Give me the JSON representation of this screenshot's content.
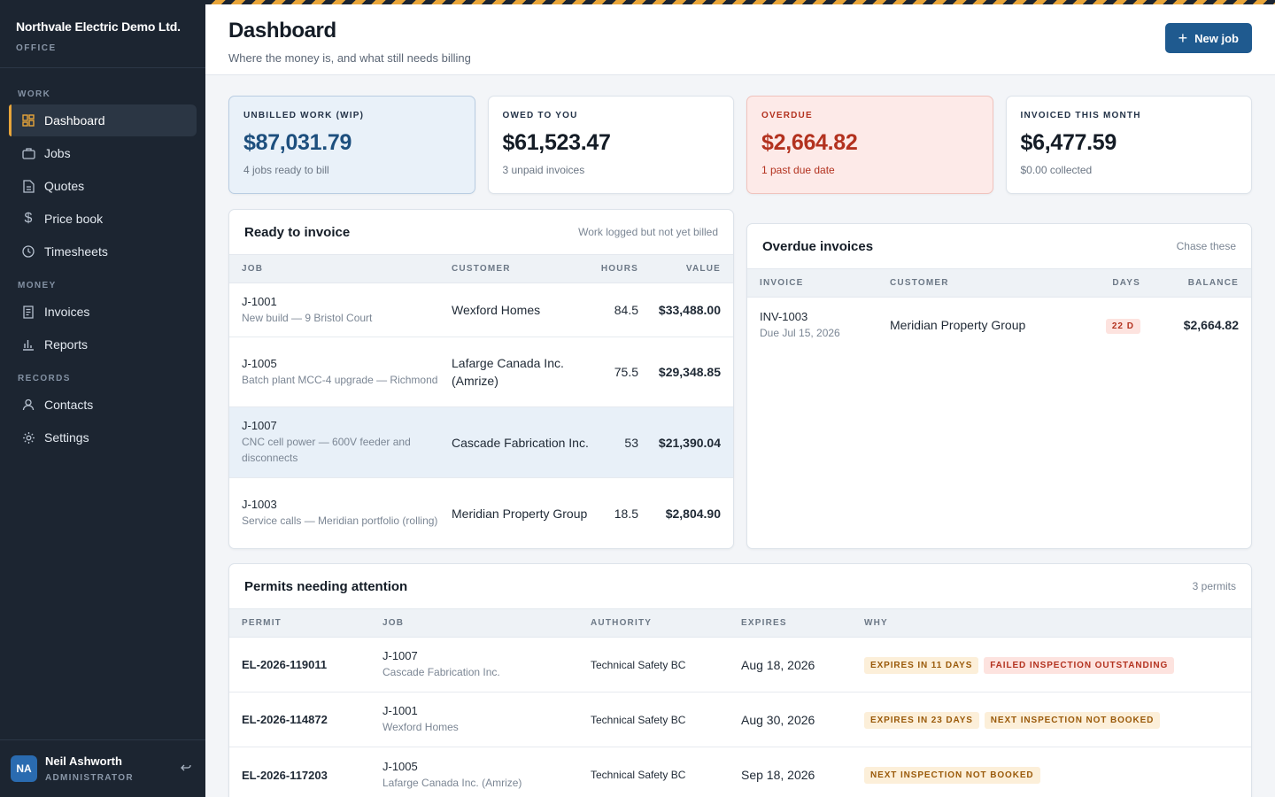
{
  "brand": {
    "name": "Northvale Electric Demo Ltd.",
    "sub": "OFFICE"
  },
  "nav": {
    "section_work": "WORK",
    "section_money": "MONEY",
    "section_records": "RECORDS",
    "dashboard": "Dashboard",
    "jobs": "Jobs",
    "quotes": "Quotes",
    "price_book": "Price book",
    "timesheets": "Timesheets",
    "invoices": "Invoices",
    "reports": "Reports",
    "contacts": "Contacts",
    "settings": "Settings"
  },
  "user": {
    "initials": "NA",
    "name": "Neil Ashworth",
    "role": "ADMINISTRATOR"
  },
  "header": {
    "title": "Dashboard",
    "subtitle": "Where the money is, and what still needs billing",
    "new_job": "New job"
  },
  "stats": [
    {
      "label": "UNBILLED WORK (WIP)",
      "value": "$87,031.79",
      "note": "4 jobs ready to bill"
    },
    {
      "label": "OWED TO YOU",
      "value": "$61,523.47",
      "note": "3 unpaid invoices"
    },
    {
      "label": "OVERDUE",
      "value": "$2,664.82",
      "note": "1 past due date"
    },
    {
      "label": "INVOICED THIS MONTH",
      "value": "$6,477.59",
      "note": "$0.00 collected"
    }
  ],
  "ready": {
    "title": "Ready to invoice",
    "hint": "Work logged but not yet billed",
    "columns": [
      "JOB",
      "CUSTOMER",
      "HOURS",
      "VALUE"
    ],
    "rows": [
      {
        "job": "J-1001",
        "desc": "New build — 9 Bristol Court",
        "customer": "Wexford Homes",
        "hours": "84.5",
        "value": "$33,488.00"
      },
      {
        "job": "J-1005",
        "desc": "Batch plant MCC-4 upgrade — Richmond",
        "customer": "Lafarge Canada Inc. (Amrize)",
        "hours": "75.5",
        "value": "$29,348.85"
      },
      {
        "job": "J-1007",
        "desc": "CNC cell power — 600V feeder and disconnects",
        "customer": "Cascade Fabrication Inc.",
        "hours": "53",
        "value": "$21,390.04"
      },
      {
        "job": "J-1003",
        "desc": "Service calls — Meridian portfolio (rolling)",
        "customer": "Meridian Property Group",
        "hours": "18.5",
        "value": "$2,804.90"
      }
    ]
  },
  "overdue": {
    "title": "Overdue invoices",
    "hint": "Chase these",
    "columns": [
      "INVOICE",
      "CUSTOMER",
      "DAYS",
      "BALANCE"
    ],
    "rows": [
      {
        "invoice": "INV-1003",
        "due": "Due Jul 15, 2026",
        "customer": "Meridian Property Group",
        "days": "22 D",
        "balance": "$2,664.82"
      }
    ]
  },
  "permits": {
    "title": "Permits needing attention",
    "hint": "3 permits",
    "columns": [
      "PERMIT",
      "JOB",
      "AUTHORITY",
      "EXPIRES",
      "WHY"
    ],
    "rows": [
      {
        "permit": "EL-2026-119011",
        "job": "J-1007",
        "customer": "Cascade Fabrication Inc.",
        "authority": "Technical Safety BC",
        "expires": "Aug 18, 2026",
        "tag1": "EXPIRES IN 11 DAYS",
        "tag2": "FAILED INSPECTION OUTSTANDING"
      },
      {
        "permit": "EL-2026-114872",
        "job": "J-1001",
        "customer": "Wexford Homes",
        "authority": "Technical Safety BC",
        "expires": "Aug 30, 2026",
        "tag1": "EXPIRES IN 23 DAYS",
        "tag2": "NEXT INSPECTION NOT BOOKED"
      },
      {
        "permit": "EL-2026-117203",
        "job": "J-1005",
        "customer": "Lafarge Canada Inc. (Amrize)",
        "authority": "Technical Safety BC",
        "expires": "Sep 18, 2026",
        "tag1": "NEXT INSPECTION NOT BOOKED"
      }
    ]
  },
  "colors": {
    "accent": "#e8a53a",
    "primary": "#1f5a8f",
    "sidebar": "#1c2531",
    "danger": "#b3321f"
  }
}
